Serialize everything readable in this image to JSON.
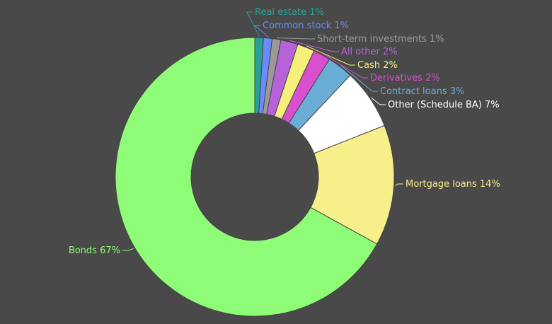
{
  "chart_data": {
    "type": "donut",
    "categories": [
      "Real estate",
      "Common stock",
      "Short-term investments",
      "All other",
      "Cash",
      "Derivatives",
      "Contract loans",
      "Other (Schedule BA)",
      "Mortgage loans",
      "Bonds"
    ],
    "values": [
      1,
      1,
      1,
      2,
      2,
      2,
      3,
      7,
      14,
      67
    ],
    "value_labels": [
      "1%",
      "1%",
      "1%",
      "2%",
      "2%",
      "2%",
      "3%",
      "7%",
      "14%",
      "67%"
    ],
    "colors": [
      "#2aa198",
      "#6b8cff",
      "#9a9a9a",
      "#b862d8",
      "#f6ef7c",
      "#d94fd0",
      "#6aaed6",
      "#ffffff",
      "#f7f08a",
      "#8ffc78"
    ]
  }
}
